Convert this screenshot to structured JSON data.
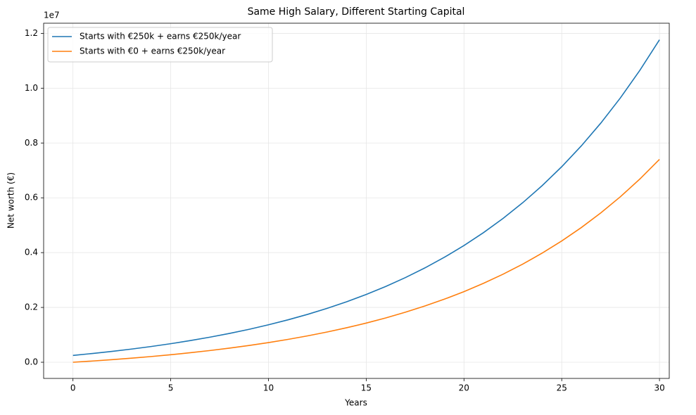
{
  "chart_data": {
    "type": "line",
    "title": "Same High Salary, Different Starting Capital",
    "x_label": "Years",
    "y_label": "Net worth (€)",
    "y_offset_label": "1e7",
    "x": [
      0,
      1,
      2,
      3,
      4,
      5,
      6,
      7,
      8,
      9,
      10,
      11,
      12,
      13,
      14,
      15,
      16,
      17,
      18,
      19,
      20,
      21,
      22,
      23,
      24,
      25,
      26,
      27,
      28,
      29,
      30
    ],
    "series": [
      {
        "name": "Starts with €250k + earns €250k/year",
        "color": "#1f77b4",
        "values": [
          250000,
          320000,
          397000,
          481700,
          574870,
          677358,
          790092,
          914102,
          1050512,
          1200563,
          1366620,
          1548182,
          1746900,
          1966590,
          2208249,
          2474074,
          2766481,
          3088130,
          3441942,
          3831136,
          4259250,
          4730174,
          5248193,
          5818012,
          6444813,
          7134294,
          7892723,
          8726996,
          9644695,
          10654165,
          11764582
        ]
      },
      {
        "name": "Starts with €0 + earns €250k/year",
        "color": "#ff7f0e",
        "values": [
          0,
          45000,
          94500,
          148950,
          208845,
          274730,
          347202,
          426923,
          514615,
          611076,
          718184,
          834903,
          962293,
          1103522,
          1258874,
          1429762,
          1617738,
          1824512,
          2051963,
          2302159,
          2577375,
          2880112,
          3213124,
          3579436,
          3982380,
          4425618,
          4913179,
          5449497,
          6039447,
          6688392,
          7402231
        ]
      }
    ],
    "xlim": [
      -1.5,
      30.5
    ],
    "ylim": [
      -590000,
      12370000
    ],
    "xticks": [
      0,
      5,
      10,
      15,
      20,
      25,
      30
    ],
    "yticks": [
      {
        "value": 0,
        "label": "0.0"
      },
      {
        "value": 2000000,
        "label": "0.2"
      },
      {
        "value": 4000000,
        "label": "0.4"
      },
      {
        "value": 6000000,
        "label": "0.6"
      },
      {
        "value": 8000000,
        "label": "0.8"
      },
      {
        "value": 10000000,
        "label": "1.0"
      },
      {
        "value": 12000000,
        "label": "1.2"
      }
    ],
    "grid": true,
    "legend": "upper-left"
  }
}
